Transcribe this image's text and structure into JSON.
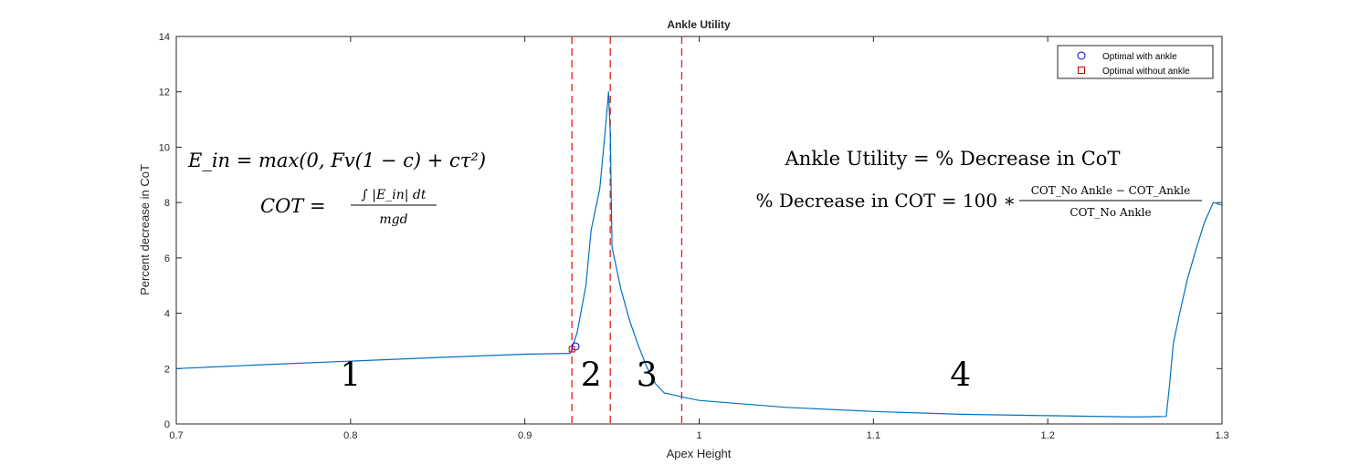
{
  "chart_data": {
    "type": "line",
    "title": "Ankle Utility",
    "xlabel": "Apex Height",
    "ylabel": "Percent decrease in CoT",
    "xlim": [
      0.7,
      1.3
    ],
    "ylim": [
      0,
      14
    ],
    "xticks": [
      0.7,
      0.8,
      0.9,
      1,
      1.1,
      1.2,
      1.3
    ],
    "xtick_labels": [
      "0.7",
      "0.8",
      "0.9",
      "1",
      "1.1",
      "1.2",
      "1.3"
    ],
    "yticks": [
      0,
      2,
      4,
      6,
      8,
      10,
      12,
      14
    ],
    "ytick_labels": [
      "0",
      "2",
      "4",
      "6",
      "8",
      "10",
      "12",
      "14"
    ],
    "grid": false,
    "legend_position": "top-right",
    "series": [
      {
        "name": "",
        "color": "#0072BD",
        "x": [
          0.7,
          0.75,
          0.8,
          0.85,
          0.9,
          0.926,
          0.93,
          0.935,
          0.938,
          0.94,
          0.943,
          0.946,
          0.948,
          0.949,
          0.95,
          0.955,
          0.96,
          0.965,
          0.97,
          0.975,
          0.98,
          0.985,
          0.99,
          1.0,
          1.05,
          1.1,
          1.15,
          1.2,
          1.25,
          1.268,
          1.27,
          1.272,
          1.275,
          1.28,
          1.285,
          1.29,
          1.295,
          1.3
        ],
        "y": [
          2.0,
          2.14,
          2.27,
          2.4,
          2.52,
          2.55,
          3.3,
          5.0,
          7.0,
          7.6,
          8.5,
          10.5,
          12.0,
          10.5,
          6.4,
          4.9,
          3.75,
          2.85,
          2.05,
          1.45,
          1.12,
          1.05,
          0.98,
          0.85,
          0.6,
          0.45,
          0.35,
          0.3,
          0.25,
          0.27,
          1.5,
          2.9,
          3.8,
          5.2,
          6.3,
          7.3,
          8.0,
          7.9
        ]
      }
    ],
    "legend": [
      {
        "label": "Optimal with ankle",
        "marker": "circle",
        "color": "#0000CC"
      },
      {
        "label": "Optimal without ankle",
        "marker": "square",
        "color": "#CC0000"
      }
    ],
    "markers": [
      {
        "series": "Optimal with ankle",
        "x": 0.929,
        "y": 2.8,
        "shape": "circle",
        "color": "#0000CC"
      },
      {
        "series": "Optimal without ankle",
        "x": 0.927,
        "y": 2.7,
        "shape": "square",
        "color": "#CC0000"
      }
    ],
    "vlines": {
      "x": [
        0.927,
        0.949,
        0.99
      ],
      "color": "#E0201B",
      "style": "dashed"
    },
    "region_labels": [
      {
        "text": "1",
        "x": 0.8,
        "y": 1.7
      },
      {
        "text": "2",
        "x": 0.938,
        "y": 1.7
      },
      {
        "text": "3",
        "x": 0.97,
        "y": 1.7
      },
      {
        "text": "4",
        "x": 1.15,
        "y": 1.7
      }
    ],
    "annotations": {
      "left": {
        "line1": "E_in = max(0, Fv(1 − c) + cτ²)",
        "cot_lhs": "COT =",
        "cot_num": "∫ |E_in| dt",
        "cot_den": "mgd"
      },
      "right": {
        "line1": "Ankle Utility = % Decrease in CoT",
        "line2_lhs": "% Decrease in COT = 100 ∗",
        "frac_num": "COT_No Ankle − COT_Ankle",
        "frac_den": "COT_No Ankle"
      }
    }
  }
}
